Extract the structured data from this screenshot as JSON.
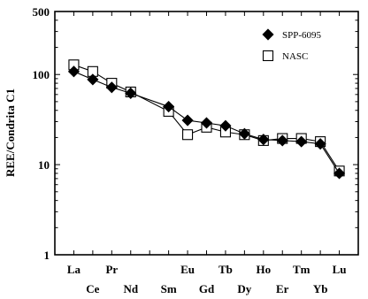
{
  "chart_data": {
    "type": "line",
    "title": "",
    "xlabel": "",
    "ylabel": "REE/Condrita C1",
    "yscale": "log",
    "ylim": [
      1,
      500
    ],
    "yticks": [
      {
        "value": 1,
        "label": "1"
      },
      {
        "value": 10,
        "label": "10"
      },
      {
        "value": 100,
        "label": "100"
      },
      {
        "value": 500,
        "label": "500"
      }
    ],
    "categories": [
      "La",
      "Ce",
      "Pr",
      "Nd",
      "Sm",
      "Eu",
      "Gd",
      "Tb",
      "Dy",
      "Ho",
      "Er",
      "Tm",
      "Yb",
      "Lu"
    ],
    "category_positions": [
      1,
      2,
      3,
      4,
      6,
      7,
      8,
      9,
      10,
      11,
      12,
      13,
      14,
      15
    ],
    "xlim": [
      0,
      16
    ],
    "legend_position": "top-right",
    "series": [
      {
        "name": "SPP-6095",
        "marker": "filled-diamond",
        "color": "#000000",
        "values": [
          108,
          88,
          72,
          62,
          44,
          31,
          29,
          27,
          22,
          19,
          18.5,
          18,
          17,
          8
        ]
      },
      {
        "name": "NASC",
        "marker": "open-square",
        "color": "#000000",
        "values": [
          128,
          108,
          80,
          64,
          39,
          21.5,
          26,
          23,
          21.5,
          18.5,
          19.5,
          19.5,
          18,
          8.5
        ]
      }
    ]
  }
}
